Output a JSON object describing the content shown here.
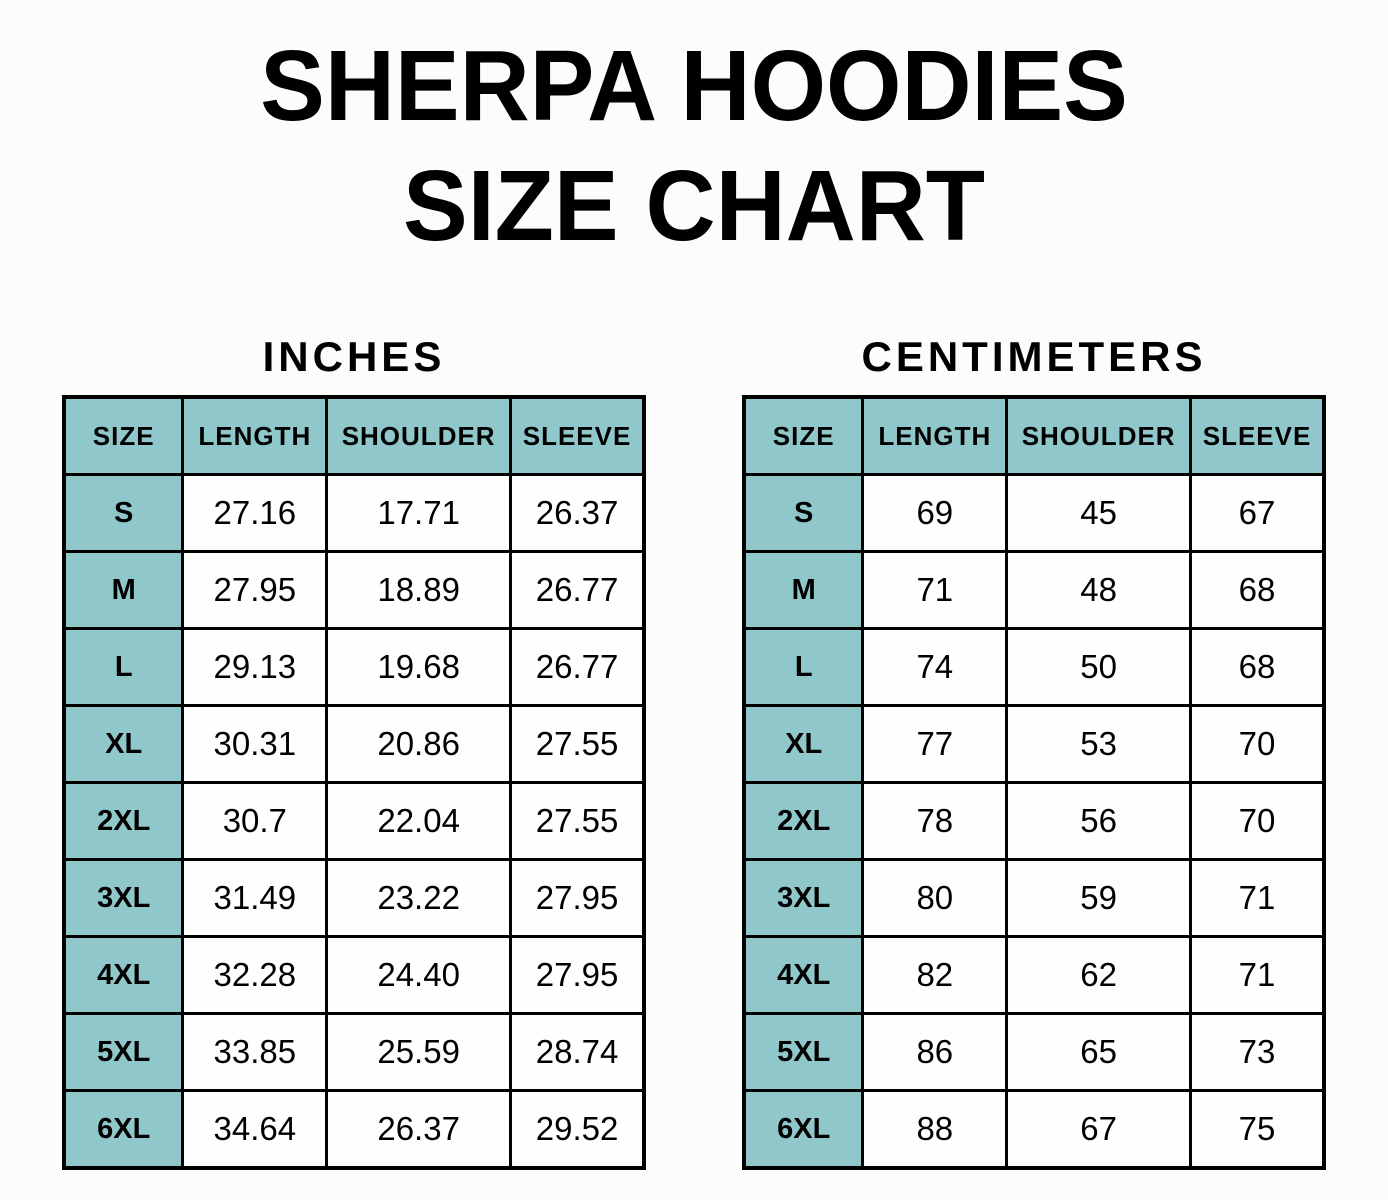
{
  "title": {
    "line1": "SHERPA HOODIES",
    "line2": "SIZE CHART"
  },
  "colors": {
    "header_bg": "#8FC7CA",
    "border": "#000000",
    "background": "#FDFCFD",
    "text": "#000000"
  },
  "chart_data": [
    {
      "type": "table",
      "title": "INCHES",
      "columns": [
        "SIZE",
        "LENGTH",
        "SHOULDER",
        "SLEEVE"
      ],
      "rows": [
        [
          "S",
          "27.16",
          "17.71",
          "26.37"
        ],
        [
          "M",
          "27.95",
          "18.89",
          "26.77"
        ],
        [
          "L",
          "29.13",
          "19.68",
          "26.77"
        ],
        [
          "XL",
          "30.31",
          "20.86",
          "27.55"
        ],
        [
          "2XL",
          "30.7",
          "22.04",
          "27.55"
        ],
        [
          "3XL",
          "31.49",
          "23.22",
          "27.95"
        ],
        [
          "4XL",
          "32.28",
          "24.40",
          "27.95"
        ],
        [
          "5XL",
          "33.85",
          "25.59",
          "28.74"
        ],
        [
          "6XL",
          "34.64",
          "26.37",
          "29.52"
        ]
      ]
    },
    {
      "type": "table",
      "title": "CENTIMETERS",
      "columns": [
        "SIZE",
        "LENGTH",
        "SHOULDER",
        "SLEEVE"
      ],
      "rows": [
        [
          "S",
          "69",
          "45",
          "67"
        ],
        [
          "M",
          "71",
          "48",
          "68"
        ],
        [
          "L",
          "74",
          "50",
          "68"
        ],
        [
          "XL",
          "77",
          "53",
          "70"
        ],
        [
          "2XL",
          "78",
          "56",
          "70"
        ],
        [
          "3XL",
          "80",
          "59",
          "71"
        ],
        [
          "4XL",
          "82",
          "62",
          "71"
        ],
        [
          "5XL",
          "86",
          "65",
          "73"
        ],
        [
          "6XL",
          "88",
          "67",
          "75"
        ]
      ]
    }
  ]
}
